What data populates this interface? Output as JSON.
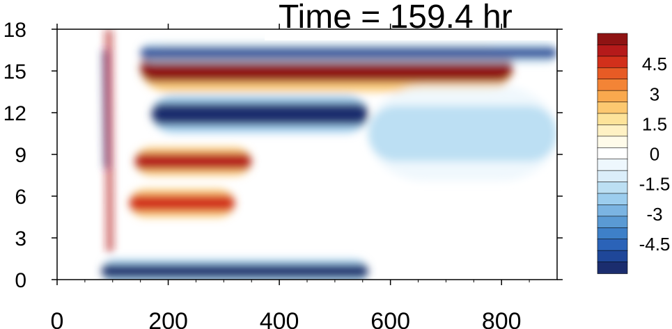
{
  "chart_data": {
    "type": "heatmap",
    "title": "Time = 159.4 hr",
    "xlabel": "",
    "ylabel": "",
    "xlim": [
      0,
      900
    ],
    "ylim": [
      0,
      18
    ],
    "x_ticks": [
      0,
      200,
      400,
      600,
      800
    ],
    "x_tick_labels": [
      "0",
      "200",
      "400",
      "600",
      "800"
    ],
    "y_ticks": [
      0,
      3,
      6,
      9,
      12,
      15,
      18
    ],
    "y_tick_labels": [
      "0",
      "3",
      "6",
      "9",
      "12",
      "15",
      "18"
    ],
    "grid": false,
    "legend": "right",
    "colorbar": {
      "min": -6,
      "max": 6,
      "step": 0.75,
      "labels": [
        "4.5",
        "3",
        "1.5",
        "0",
        "-1.5",
        "-3",
        "-4.5"
      ],
      "label_values": [
        4.5,
        3,
        1.5,
        0,
        -1.5,
        -3,
        -4.5
      ],
      "colors": [
        "#1b2d6e",
        "#1f4799",
        "#2b63b8",
        "#3e80c8",
        "#5a9ad4",
        "#7bb4e2",
        "#9ccdee",
        "#bcdff3",
        "#dbeefa",
        "#eef7fd",
        "#ffffff",
        "#fffbea",
        "#fff1c4",
        "#fde39a",
        "#fcc870",
        "#f9a94e",
        "#f38436",
        "#e75b25",
        "#d2301b",
        "#b51a1a",
        "#8f1313"
      ]
    },
    "features": [
      {
        "x_start": 150,
        "x_end": 820,
        "y_center": 15.2,
        "y_half_width": 1.0,
        "value": 5.6,
        "note_color": "#8f1313"
      },
      {
        "x_start": 170,
        "x_end": 560,
        "y_center": 11.9,
        "y_half_width": 0.8,
        "value": -5.5,
        "note_color": "#1b2d6e"
      },
      {
        "x_start": 560,
        "x_end": 900,
        "y_center": 10.5,
        "y_half_width": 2.0,
        "value": -1.2,
        "note_color": "#bcdff3"
      },
      {
        "x_start": 140,
        "x_end": 350,
        "y_center": 8.5,
        "y_half_width": 0.6,
        "value": 5.0,
        "note_color": "#b51a1a"
      },
      {
        "x_start": 130,
        "x_end": 320,
        "y_center": 5.5,
        "y_half_width": 0.6,
        "value": 4.6,
        "note_color": "#d2301b"
      },
      {
        "x_start": 80,
        "x_end": 560,
        "y_center": 0.6,
        "y_half_width": 0.5,
        "value": -5.6,
        "note_color": "#1b2d6e"
      },
      {
        "x_start": 150,
        "x_end": 900,
        "y_center": 16.3,
        "y_half_width": 0.4,
        "value": -4.0,
        "note_color": "#1f4799"
      }
    ]
  }
}
